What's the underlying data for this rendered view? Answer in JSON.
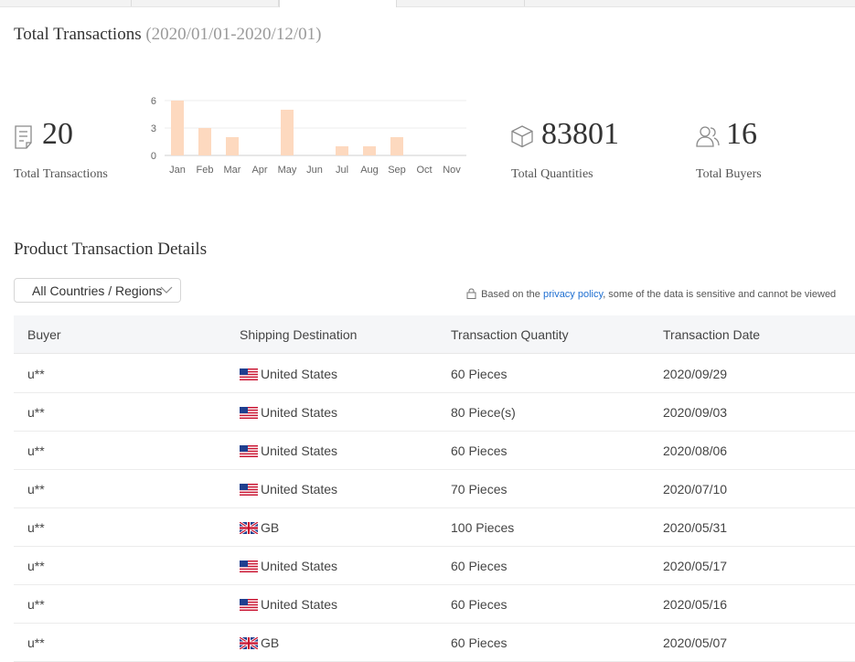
{
  "header": {
    "title": "Total Transactions",
    "date_range": "(2020/01/01-2020/12/01)"
  },
  "stats": {
    "transactions": {
      "value": "20",
      "label": "Total Transactions",
      "icon": "receipt-icon"
    },
    "quantities": {
      "value": "83801",
      "label": "Total Quantities",
      "icon": "box-icon"
    },
    "buyers": {
      "value": "16",
      "label": "Total Buyers",
      "icon": "users-icon"
    }
  },
  "chart_data": {
    "type": "bar",
    "categories": [
      "Jan",
      "Feb",
      "Mar",
      "Apr",
      "May",
      "Jun",
      "Jul",
      "Aug",
      "Sep",
      "Oct",
      "Nov"
    ],
    "values": [
      6,
      3,
      2,
      0,
      5,
      0,
      1,
      1,
      2,
      0,
      0
    ],
    "yticks": [
      "0",
      "3",
      "6"
    ],
    "ylim": [
      0,
      6
    ],
    "color": "#fdd9bf",
    "grid": true
  },
  "details": {
    "title": "Product Transaction Details",
    "filter": {
      "selected": "All Countries / Regions"
    },
    "privacy": {
      "prefix": "Based on the",
      "link": "privacy policy",
      "suffix": ", some of the data is sensitive and cannot be viewed"
    },
    "columns": [
      "Buyer",
      "Shipping Destination",
      "Transaction Quantity",
      "Transaction Date"
    ],
    "rows": [
      {
        "buyer": "u**",
        "flag": "us",
        "destination": "United States",
        "quantity": "60 Pieces",
        "date": "2020/09/29"
      },
      {
        "buyer": "u**",
        "flag": "us",
        "destination": "United States",
        "quantity": "80 Piece(s)",
        "date": "2020/09/03"
      },
      {
        "buyer": "u**",
        "flag": "us",
        "destination": "United States",
        "quantity": "60 Pieces",
        "date": "2020/08/06"
      },
      {
        "buyer": "u**",
        "flag": "us",
        "destination": "United States",
        "quantity": "70 Pieces",
        "date": "2020/07/10"
      },
      {
        "buyer": "u**",
        "flag": "gb",
        "destination": "GB",
        "quantity": "100 Pieces",
        "date": "2020/05/31"
      },
      {
        "buyer": "u**",
        "flag": "us",
        "destination": "United States",
        "quantity": "60 Pieces",
        "date": "2020/05/17"
      },
      {
        "buyer": "u**",
        "flag": "us",
        "destination": "United States",
        "quantity": "60 Pieces",
        "date": "2020/05/16"
      },
      {
        "buyer": "u**",
        "flag": "gb",
        "destination": "GB",
        "quantity": "60 Pieces",
        "date": "2020/05/07"
      }
    ]
  }
}
